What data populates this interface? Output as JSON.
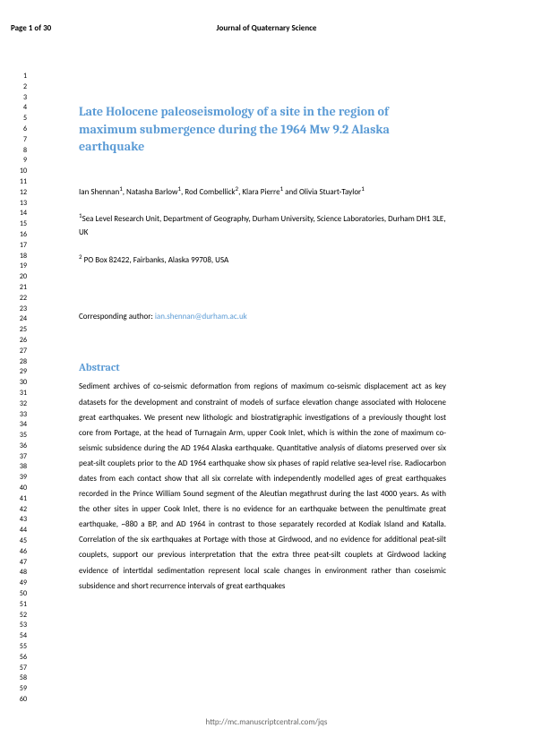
{
  "header": {
    "page_number": "Page 1 of 30",
    "journal_name": "Journal of Quaternary Science"
  },
  "line_numbers": {
    "start": 1,
    "end": 60
  },
  "title": "Late Holocene paleoseismology of a site in the region of maximum submergence during the 1964 Mw 9.2 Alaska earthquake",
  "authors_html": "Ian Shennan<sup>1</sup>, Natasha Barlow<sup>1</sup>, Rod Combellick<sup>2</sup>, Klara Pierre<sup>1</sup> and Olivia Stuart-Taylor<sup>1</sup>",
  "affiliations": [
    {
      "sup": "1",
      "text": "Sea Level Research Unit, Department of Geography, Durham University, Science Laboratories, Durham DH1 3LE, UK"
    },
    {
      "sup": "2",
      "text": " PO Box 82422, Fairbanks, Alaska 99708, USA"
    }
  ],
  "corresponding": {
    "label": "Corresponding author: ",
    "email": "ian.shennan@durham.ac.uk"
  },
  "abstract_heading": "Abstract",
  "abstract_text": "Sediment archives of co-seismic deformation from regions of maximum co-seismic displacement act as key datasets for the development and constraint of models of surface elevation change associated with Holocene great earthquakes.  We present new lithologic and biostratigraphic investigations of a previously thought lost core from Portage, at the head of Turnagain Arm, upper Cook Inlet, which is within the zone of maximum co-seismic subsidence during the AD 1964 Alaska earthquake.  Quantitative analysis of diatoms preserved over six peat-silt couplets prior to the AD 1964 earthquake show six phases of rapid relative sea-level rise.  Radiocarbon dates from each contact show that all six correlate with independently modelled ages of great earthquakes recorded in the Prince William Sound segment of the Aleutian megathrust during the last 4000 years.  As with the other sites in upper Cook Inlet, there is no evidence for an earthquake between the penultimate great earthquake, ~880 a BP, and AD 1964 in contrast to those separately recorded at Kodiak Island and Katalla. Correlation of the six earthquakes at Portage with those at Girdwood, and no evidence for additional peat-silt couplets, support our previous interpretation that the extra three peat-silt couplets at Girdwood lacking evidence of intertidal sedimentation represent local scale changes in environment rather than coseismic subsidence and short recurrence intervals of great earthquakes",
  "footer": "http://mc.manuscriptcentral.com/jqs",
  "colors": {
    "accent": "#5b9bd5",
    "text": "#000000",
    "footer_text": "#666666",
    "background": "#ffffff"
  }
}
